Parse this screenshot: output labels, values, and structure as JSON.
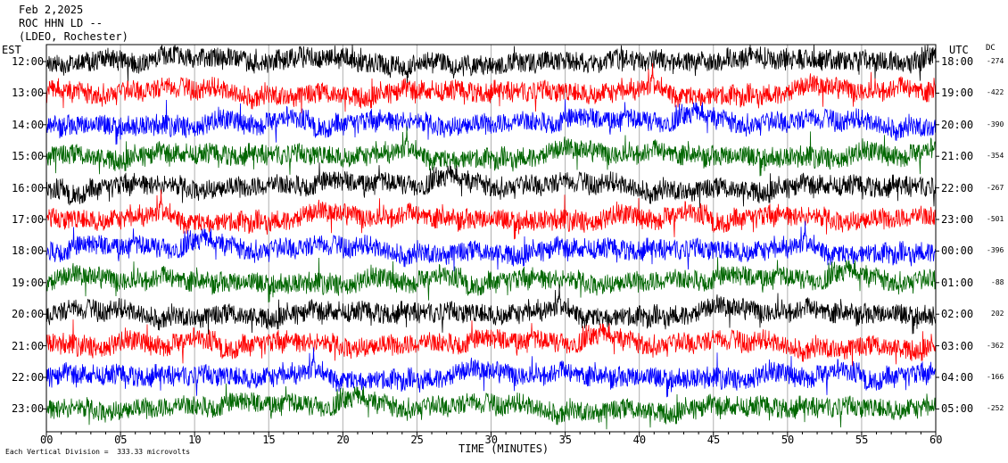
{
  "header": {
    "date": "Feb 2,2025",
    "station": "ROC HHN LD --",
    "network": "(LDEO, Rochester)"
  },
  "est_title": "EST",
  "utc_title": "UTC",
  "dc_title": "DC",
  "xlabel": "TIME (MINUTES)",
  "scale_note": "Each Vertical Division =  333.33 microvolts",
  "colors": [
    "#000000",
    "#ff0000",
    "#0000ff",
    "#006600"
  ],
  "chart_data": {
    "type": "line",
    "title": "ROC HHN LD --",
    "xlabel": "TIME (MINUTES)",
    "xlim": [
      0,
      60
    ],
    "x_ticks": [
      "00",
      "05",
      "10",
      "15",
      "20",
      "25",
      "30",
      "35",
      "40",
      "45",
      "50",
      "55",
      "60"
    ],
    "traces": [
      {
        "est": "12:00",
        "utc": "18:00",
        "dc": "-274",
        "color": "#000000"
      },
      {
        "est": "13:00",
        "utc": "19:00",
        "dc": "-422",
        "color": "#ff0000"
      },
      {
        "est": "14:00",
        "utc": "20:00",
        "dc": "-390",
        "color": "#0000ff"
      },
      {
        "est": "15:00",
        "utc": "21:00",
        "dc": "-354",
        "color": "#006600"
      },
      {
        "est": "16:00",
        "utc": "22:00",
        "dc": "-267",
        "color": "#000000"
      },
      {
        "est": "17:00",
        "utc": "23:00",
        "dc": "-501",
        "color": "#ff0000"
      },
      {
        "est": "18:00",
        "utc": "00:00",
        "dc": "-396",
        "color": "#0000ff"
      },
      {
        "est": "19:00",
        "utc": "01:00",
        "dc": "-88",
        "color": "#006600"
      },
      {
        "est": "20:00",
        "utc": "02:00",
        "dc": "202",
        "color": "#000000"
      },
      {
        "est": "21:00",
        "utc": "03:00",
        "dc": "-362",
        "color": "#ff0000"
      },
      {
        "est": "22:00",
        "utc": "04:00",
        "dc": "-166",
        "color": "#0000ff"
      },
      {
        "est": "23:00",
        "utc": "05:00",
        "dc": "-252",
        "color": "#006600"
      }
    ]
  }
}
